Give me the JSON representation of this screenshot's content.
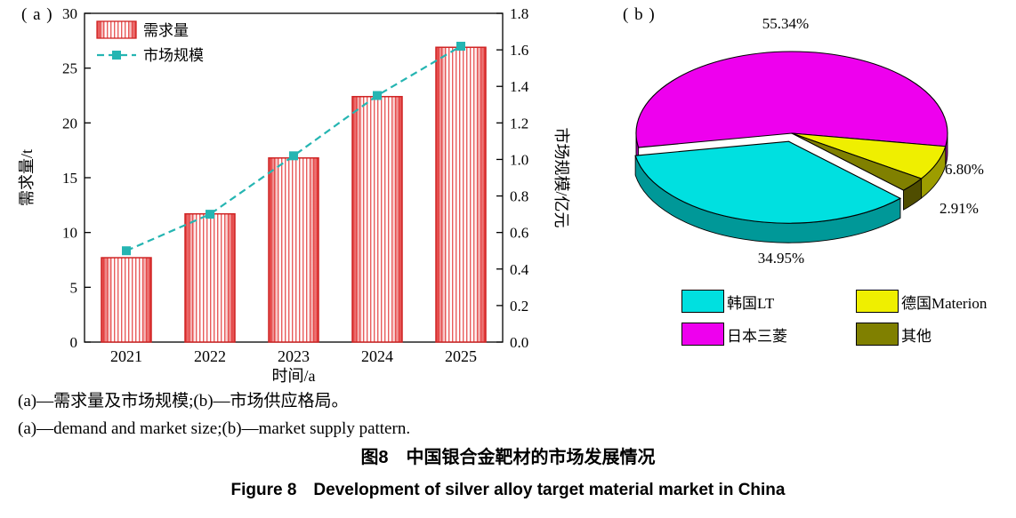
{
  "figure": {
    "panel_a_label": "( a )",
    "panel_b_label": "( b )",
    "captions": {
      "line1_zh": "(a)—需求量及市场规模;(b)—市场供应格局。",
      "line2_en": "(a)—demand and market size;(b)—market supply pattern.",
      "title_zh": "图8　中国银合金靶材的市场发展情况",
      "title_en": "Figure 8　Development of silver alloy target material market in China"
    }
  },
  "chart_data": [
    {
      "type": "bar",
      "subtype": "bar+line dual-axis",
      "categories": [
        "2021",
        "2022",
        "2023",
        "2024",
        "2025"
      ],
      "series": [
        {
          "name": "需求量",
          "type": "bar",
          "axis": "left",
          "values": [
            7.7,
            11.7,
            16.8,
            22.4,
            26.9
          ],
          "color": "#e23333",
          "fill_style": "vertical-red-stripes"
        },
        {
          "name": "市场规模",
          "type": "line",
          "axis": "right",
          "values": [
            0.5,
            0.7,
            1.02,
            1.35,
            1.62
          ],
          "color": "#25b5b2",
          "marker": "square",
          "linestyle": "dashed"
        }
      ],
      "xlabel": "时间/a",
      "ylabel_left": "需求量/t",
      "ylabel_right": "市场规模/亿元",
      "ylim_left": [
        0,
        30
      ],
      "ytick_step_left": 5,
      "ylim_right": [
        0,
        1.8
      ],
      "ytick_step_right": 0.2,
      "grid": false,
      "legend_position": "top-left"
    },
    {
      "type": "pie",
      "style": "3d-exploded",
      "start_angle_deg": 190,
      "slices": [
        {
          "label": "日本三菱",
          "value": 55.34,
          "pct_label": "55.34%",
          "color": "#ee00ee",
          "dark": "#a100a1",
          "explode": false
        },
        {
          "label": "德国Materion",
          "value": 6.8,
          "pct_label": "6.80%",
          "color": "#efef00",
          "dark": "#9d9d00",
          "explode": false
        },
        {
          "label": "其他",
          "value": 2.91,
          "pct_label": "2.91%",
          "color": "#808000",
          "dark": "#4f4d00",
          "explode": false
        },
        {
          "label": "韩国LT",
          "value": 34.95,
          "pct_label": "34.95%",
          "color": "#00e0e0",
          "dark": "#009898",
          "explode": true
        }
      ],
      "legend": [
        {
          "label": "韩国LT",
          "color": "#00e0e0"
        },
        {
          "label": "德国Materion",
          "color": "#efef00"
        },
        {
          "label": "日本三菱",
          "color": "#ee00ee"
        },
        {
          "label": "其他",
          "color": "#808000"
        }
      ],
      "legend_position": "bottom",
      "legend_columns": 2
    }
  ]
}
